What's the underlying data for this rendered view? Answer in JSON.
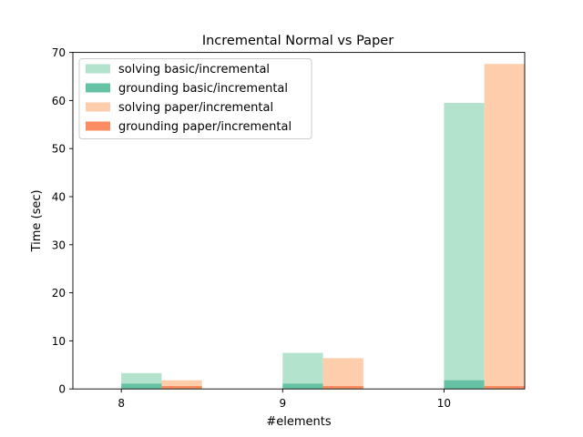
{
  "chart_data": {
    "type": "bar",
    "title": "Incremental Normal vs Paper",
    "xlabel": "#elements",
    "ylabel": "Time (sec)",
    "categories": [
      "8",
      "9",
      "10"
    ],
    "ylim": [
      0,
      70
    ],
    "yticks": [
      0,
      10,
      20,
      30,
      40,
      50,
      60,
      70
    ],
    "grid": false,
    "legend_position": "top-left",
    "groups": [
      {
        "name": "basic",
        "solving": {
          "name": "solving basic/incremental",
          "color": "#b3e2cd",
          "values": [
            3.3,
            7.5,
            59.5
          ]
        },
        "grounding": {
          "name": "grounding basic/incremental",
          "color": "#66c2a5",
          "values": [
            1.1,
            1.1,
            1.8
          ]
        }
      },
      {
        "name": "paper",
        "solving": {
          "name": "solving paper/incremental",
          "color": "#fdcdac",
          "values": [
            1.8,
            6.4,
            67.6
          ]
        },
        "grounding": {
          "name": "grounding paper/incremental",
          "color": "#fc8d62",
          "values": [
            0.6,
            0.6,
            0.6
          ]
        }
      }
    ]
  }
}
